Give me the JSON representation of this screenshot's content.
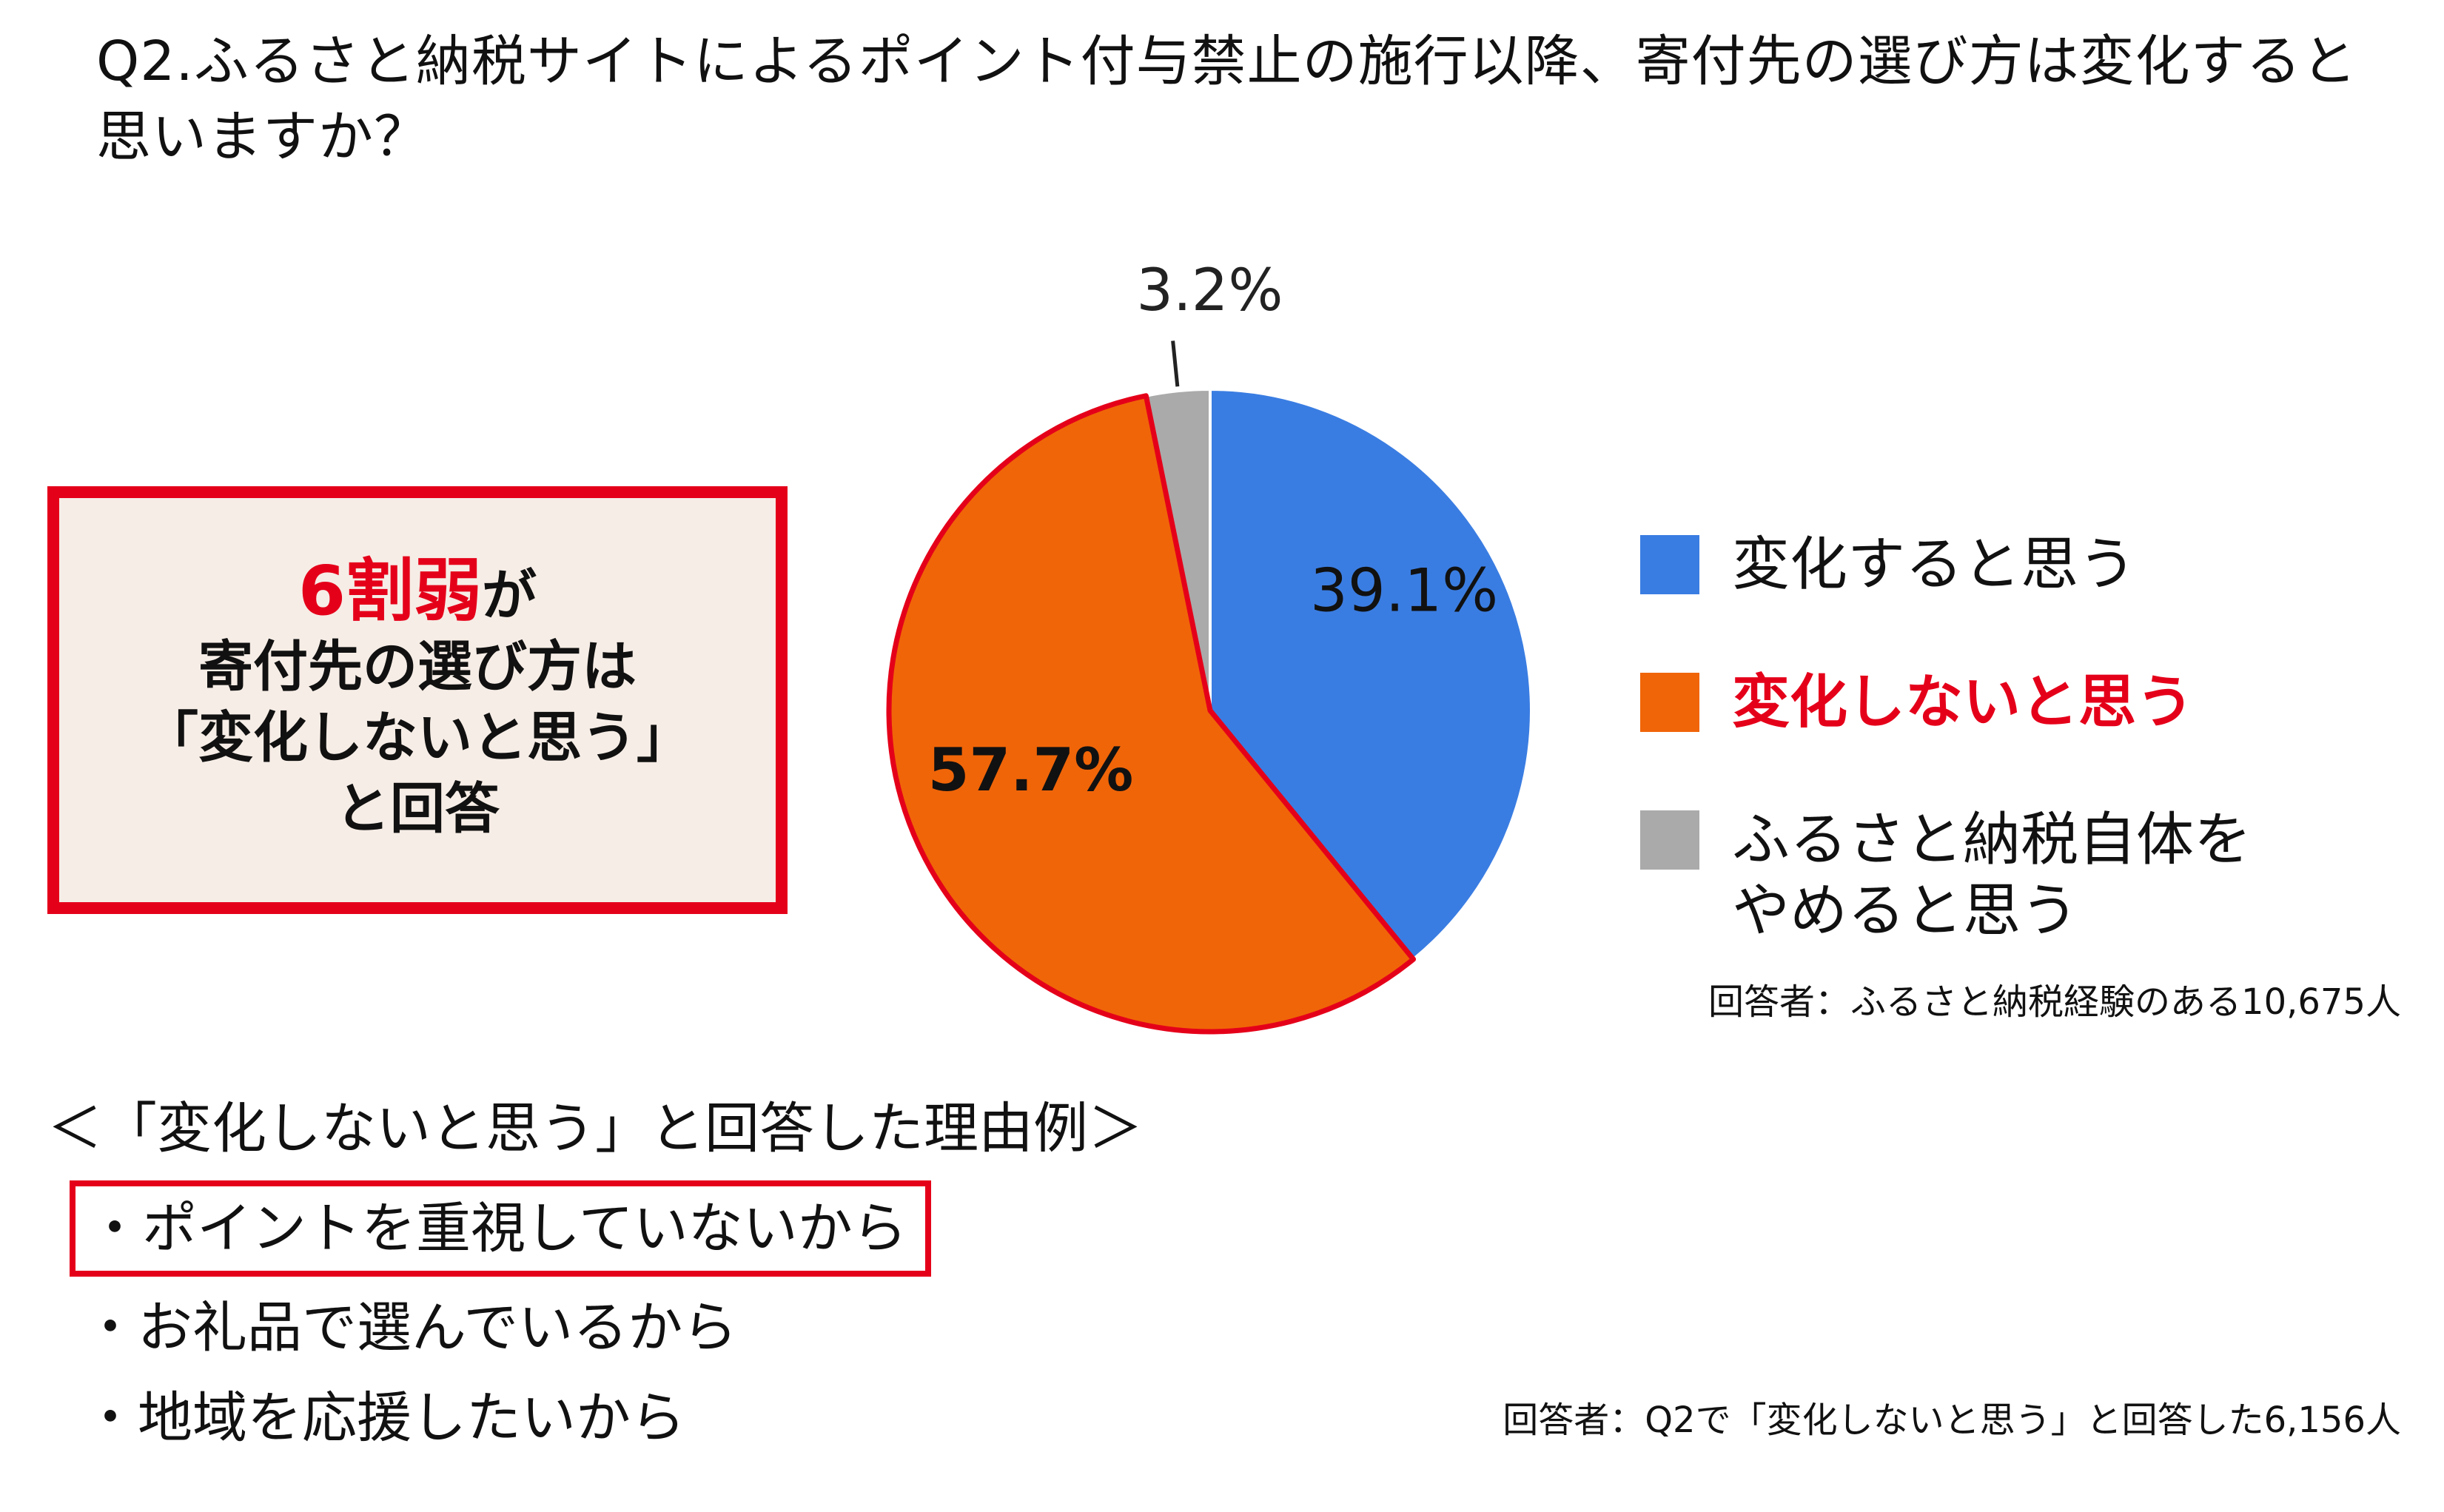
{
  "page": {
    "question": "Q2.ふるさと納税サイトによるポイント付与禁止の施行以降、寄付先の選び方は変化すると思いますか？"
  },
  "callout": {
    "lines": [
      "6割弱が",
      "寄付先の選び方は",
      "「変化しないと思う」",
      "と回答"
    ],
    "highlight": "6割弱",
    "after_highlight": "が"
  },
  "chart_data": {
    "type": "pie",
    "title": "",
    "slices": [
      {
        "name": "変化すると思う",
        "value": 39.1,
        "label": "39.1%",
        "color": "#3a7de2"
      },
      {
        "name": "変化しないと思う",
        "value": 57.7,
        "label": "57.7%",
        "color": "#f06508",
        "emphasized": true
      },
      {
        "name": "ふるさと納税自体をやめると思う",
        "value": 3.2,
        "label": "3.2%",
        "color": "#aaaaaa"
      }
    ],
    "start": "12 o'clock",
    "direction": "clockwise",
    "legend": "right",
    "highlight_outline_color": "#e5001a"
  },
  "legend": {
    "items": [
      {
        "label": "変化すると思う",
        "color": "#3a7de2",
        "emphasized": false
      },
      {
        "label": "変化しないと思う",
        "color": "#f06508",
        "emphasized": true
      },
      {
        "label": "ふるさと納税自体を\nやめると思う",
        "color": "#aaaaaa",
        "emphasized": false
      }
    ],
    "note": "回答者：ふるさと納税経験のある10,675人"
  },
  "reasons": {
    "title": "＜「変化しないと思う」と回答した理由例＞",
    "items": [
      {
        "text": "・ポイントを重視していないから",
        "boxed": true
      },
      {
        "text": "・お礼品で選んでいるから",
        "boxed": false
      },
      {
        "text": "・地域を応援したいから",
        "boxed": false
      }
    ],
    "note": "回答者：Q2で「変化しないと思う」と回答した6,156人"
  },
  "colors": {
    "accent_red": "#e5001a",
    "callout_bg": "#f6ede6"
  }
}
